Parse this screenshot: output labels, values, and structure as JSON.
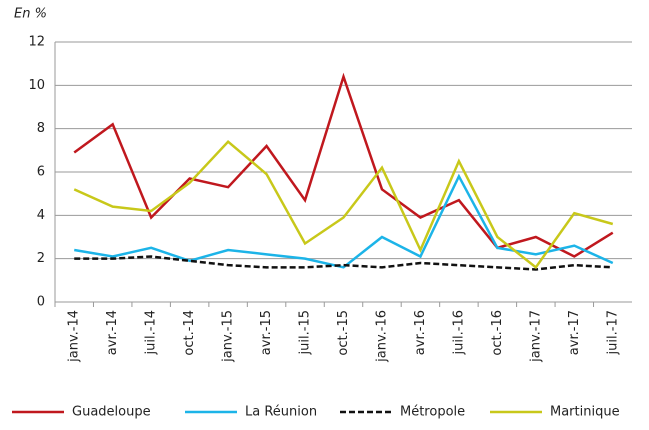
{
  "chart_data": {
    "type": "line",
    "unit_label": "En %",
    "categories": [
      "janv.-14",
      "avr.-14",
      "juil.-14",
      "oct.-14",
      "janv.-15",
      "avr.-15",
      "juil.-15",
      "oct.-15",
      "janv.-16",
      "avr.-16",
      "juil.-16",
      "oct.-16",
      "janv.-17",
      "avr.-17",
      "juil.-17"
    ],
    "series": [
      {
        "name": "Guadeloupe",
        "color": "#c0181e",
        "dashed": false,
        "values": [
          6.9,
          8.2,
          3.9,
          5.7,
          5.3,
          7.2,
          4.7,
          10.4,
          5.2,
          3.9,
          4.7,
          2.5,
          3.0,
          2.1,
          3.2
        ]
      },
      {
        "name": "La Réunion",
        "color": "#1cb4e8",
        "dashed": false,
        "values": [
          2.4,
          2.1,
          2.5,
          1.9,
          2.4,
          2.2,
          2.0,
          1.6,
          3.0,
          2.1,
          5.8,
          2.5,
          2.2,
          2.6,
          1.8
        ]
      },
      {
        "name": "Métropole",
        "color": "#111111",
        "dashed": true,
        "values": [
          2.0,
          2.0,
          2.1,
          1.9,
          1.7,
          1.6,
          1.6,
          1.7,
          1.6,
          1.8,
          1.7,
          1.6,
          1.5,
          1.7,
          1.6
        ]
      },
      {
        "name": "Martinique",
        "color": "#c8c81a",
        "dashed": false,
        "values": [
          5.2,
          4.4,
          4.2,
          5.5,
          7.4,
          5.9,
          2.7,
          3.9,
          6.2,
          2.4,
          6.5,
          3.0,
          1.6,
          4.1,
          3.6
        ]
      }
    ],
    "ylim": [
      0,
      12
    ],
    "yticks": [
      0,
      2,
      4,
      6,
      8,
      10,
      12
    ],
    "grid": true,
    "legend": "bottom"
  }
}
